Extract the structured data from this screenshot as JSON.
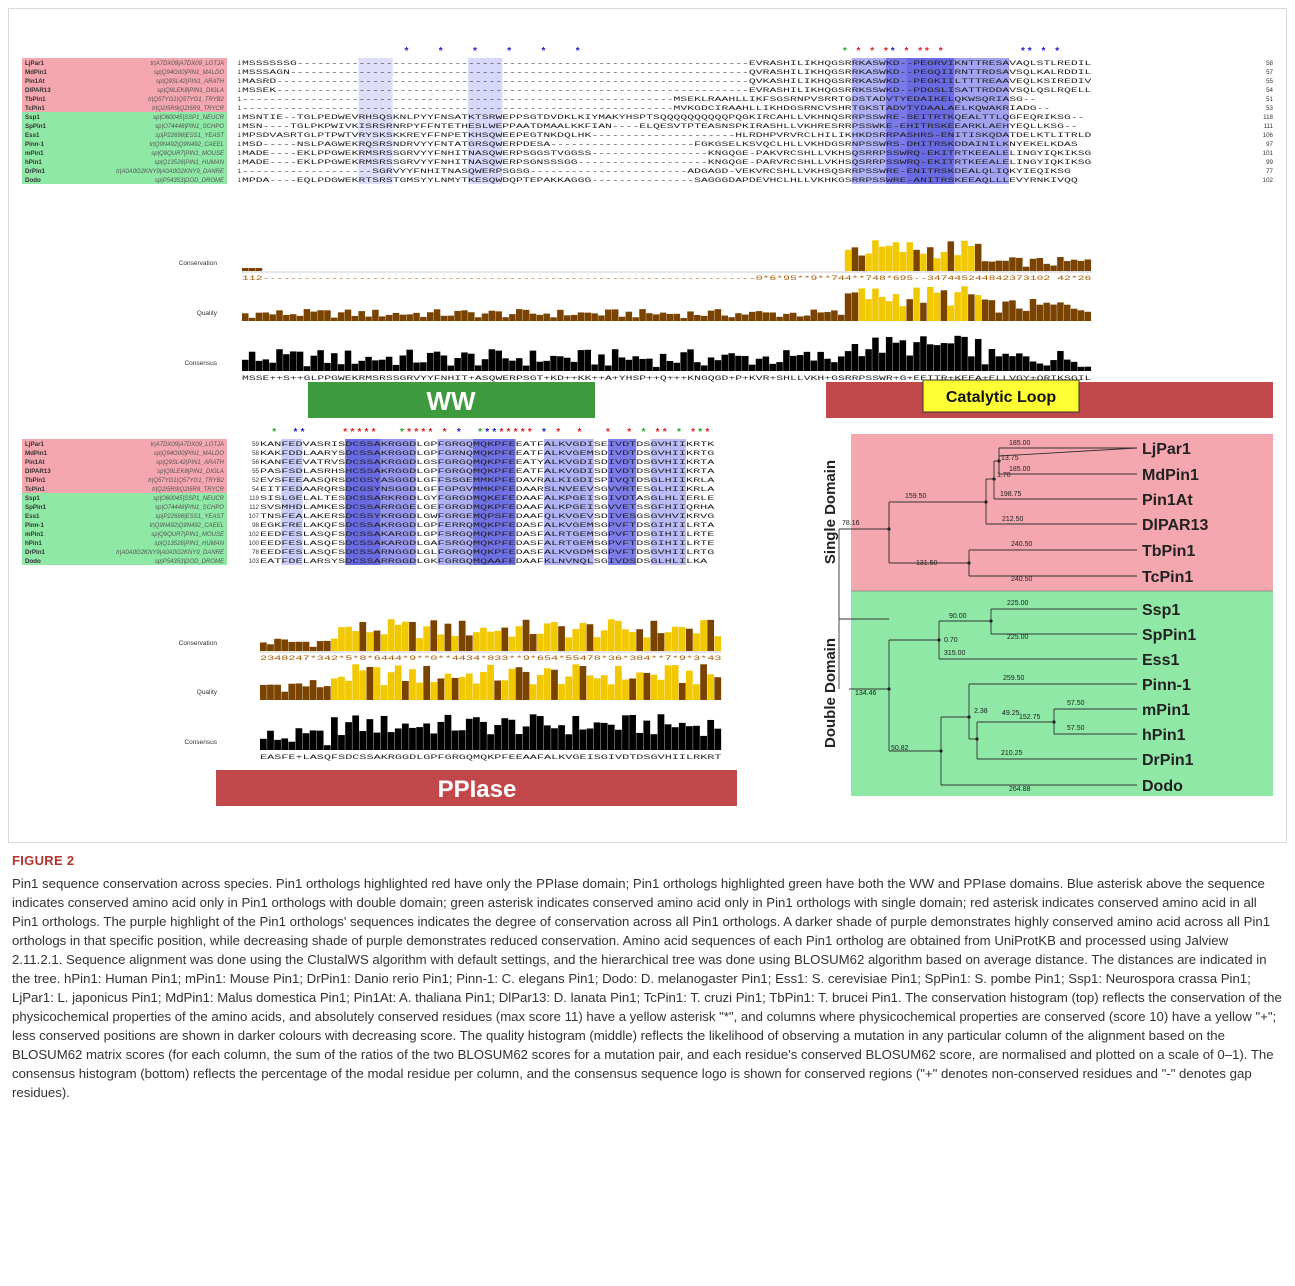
{
  "figure": {
    "top_panel": {
      "rows": [
        {
          "name": "LjPar1",
          "acc": "tr|A7DX09|A7DX09_LOTJA",
          "group": "single",
          "start": "1",
          "end": "58",
          "seq": "MSSSSSSG------------------------------------------------------------------EVRASHILIKHQGSRRKASWKD--PEGRVIKNTTRESAVAQLSTLREDILSG"
        },
        {
          "name": "MdPin1",
          "acc": "sp|Q94G00|PIN1_MALDO",
          "group": "single",
          "start": "1",
          "end": "57",
          "seq": "MSSSAGN-------------------------------------------------------------------QVRASHILIKHQGSRRKASWKD--PEGQIIRNTTRDSAVSQLKALRDDILSG"
        },
        {
          "name": "Pin1At",
          "acc": "sp|Q9SL42|PIN1_ARATH",
          "group": "single",
          "start": "1",
          "end": "55",
          "seq": "MASRD---------------------------------------------------------------------QVKASHILIKHQGSRRKASWKD--PEGKIILTTTREAAVEQLKSIREDIVSG"
        },
        {
          "name": "DlPAR13",
          "acc": "sp|Q9LEK8|PIN1_DIGLA",
          "group": "single",
          "start": "1",
          "end": "54",
          "seq": "MSSEK---------------------------------------------------------------------EVRASHILIKHQGSRRKSSWKD--PDGSLISATTRDDAVSQLQSLRQELLSD"
        },
        {
          "name": "TbPin1",
          "acc": "tr|Q57YG1|Q57YG1_TRYB2",
          "group": "single",
          "start": "1",
          "end": "51",
          "seq": "---------------------------------------------------------------MSEKLRAAHLLIKFSGSRNPVSRRTGDSTADVTYEDAIKELQKWSQRIASG--"
        },
        {
          "name": "TcPin1",
          "acc": "tr|Q2I5R9|Q2I5R9_TRYCR",
          "group": "single",
          "start": "1",
          "end": "53",
          "seq": "---------------------------------------------------------------MVKGDCIRAAHLLIKHDGSRNCVSHRTGKSTADVTYDAALAELKQWAKRIADG--"
        },
        {
          "name": "Ssp1",
          "acc": "sp|O60045|SSP1_NEUCR",
          "group": "double",
          "start": "1",
          "end": "118",
          "seq": "MSNTIE--TGLPEDWEVRHSQSKNLPYYFNSATKTSRWEPPSGTDVDKLKIYMAKYHSPTSQQQQQQQQQQPQGKIRCAHLLVKHNQSRRPSSWRE-SEITRTKQEALTTLQGFEQRIKSG--"
        },
        {
          "name": "SpPin1",
          "acc": "sp|O74448|PIN1_SCHPO",
          "group": "double",
          "start": "1",
          "end": "111",
          "seq": "MSN----TGLPKPWIVKISRSRNRPYFFNTETHESLWEPPAATDMAALKKFIAN----ELQESVTPTEASNSPKIRASHLLVKHRESRRPSSWKE-EHITRSKEEARKLAEHYEQLLKSG--"
        },
        {
          "name": "Ess1",
          "acc": "sp|P22696|ESS1_YEAST",
          "group": "double",
          "start": "1",
          "end": "106",
          "seq": "MPSDVASRTGLPTPWTVRYSKSKKREYFFNPETKHSQWEEPEGTNKDQLHK---------------------HLRDHPVRVRCLHILIKHKDSRRPASHRS-ENITISKQDATDELKTLITRLDDD"
        },
        {
          "name": "Pinn-1",
          "acc": "tr|Q9N492|Q9N492_CAEEL",
          "group": "double",
          "start": "1",
          "end": "97",
          "seq": "MSD-----NSLPAGWEKRQSRSNDRVYYFNTATGRSQWERPDESA---------------------FGKGSELKSVQCLHLLVKHDGSRNPSSWRS-DHITRSKDDAINILKNYEKELKDAS"
        },
        {
          "name": "mPin1",
          "acc": "sp|Q9QUR7|PIN1_MOUSE",
          "group": "double",
          "start": "1",
          "end": "101",
          "seq": "MADE----EKLPPGWEKRMSRSSGRVYYFNHITNASQWERPSGGSTVGGSS-----------------KNGQGE-PAKVRCSHLLVKHSQSRRPSSWRQ-EKITRTKEEALELINGYIQKIKSG"
        },
        {
          "name": "hPin1",
          "acc": "sp|Q13526|PIN1_HUMAN",
          "group": "double",
          "start": "1",
          "end": "99",
          "seq": "MADE----EKLPPGWEKRMSRSSGRVYYFNHITNASQWERPSGNSSSGG-------------------KNGQGE-PARVRCSHLLVKHSQSRRPSSWRQ-EKITRTKEEALELINGYIQKIKSG"
        },
        {
          "name": "DrPin1",
          "acc": "tr|A0A0G2KNY9|A0A0G2KNY9_DANRE",
          "group": "double",
          "start": "1",
          "end": "77",
          "seq": "-------------------SGRVYYFNHITNASQWERPSGSG-----------------------ADGAGD-VEKVRCSHLLVKHSQSRRPSSWRE-ENITRSKDEALQLIQKYIEQIKSG"
        },
        {
          "name": "Dodo",
          "acc": "sp|P54353|DOD_DROME",
          "group": "double",
          "start": "1",
          "end": "102",
          "seq": "MPDA----EQLPDGWEKRTSRSTGMSYYLNMYTKESQWDQPTEPAKKAGGG---------------SAGGGDAPDEVHCLHLLVKHKGSRRPSSWRE-ANITRSKEEAQLLLEVYRNKIVQQ"
        }
      ],
      "conservation_numbers": "112------------------------------------------------------------------------0*6*95**9**744**748*695--347445244842373102 42*264----",
      "consensus": "MSSE++S++GLPPGWEKRMSRSSGRVYYFNHIT+ASQWERPSGT+KD++KK++A+YHSP++Q+++KNGQGD+P+KVR+SHLLVKH+GSRRPSSWR+G+EEITR+KEEA+ELLVGY+QRIKSGILSG",
      "ww_label": "WW",
      "loop_label": "Catalytic Loop"
    },
    "bottom_panel": {
      "rows": [
        {
          "name": "LjPar1",
          "acc": "tr|A7DX09|A7DX09_LOTJA",
          "group": "single",
          "start": "59",
          "seq": "KANFEDVASRISDCSSAKRGGDLGPFGRGQMQKPFEEATFALKVGDISEIVDTDSGVHIIKRTK"
        },
        {
          "name": "MdPin1",
          "acc": "sp|Q94G00|PIN1_MALDO",
          "group": "single",
          "start": "58",
          "seq": "KAKFDDLAARYSDCSSAKRGGDLGPFGRNQMQKPFEEATFALKVGEMSDIVDTDSGVHIIKRTG"
        },
        {
          "name": "Pin1At",
          "acc": "sp|Q9SL42|PIN1_ARATH",
          "group": "single",
          "start": "56",
          "seq": "KANFEEVATRVSDCSSAKRGGDLGSFGRGQMQKPFEEATYALKVGDISDIVDTDSGVHIIKRTA"
        },
        {
          "name": "DlPAR13",
          "acc": "sp|Q9LEK8|PIN1_DIGLA",
          "group": "single",
          "start": "55",
          "seq": "PASFSDLASRHSHCSSAKRGGDLGPFGRGQMQKPFEEATFALKVGDISDIVDTDSGVHIIKRTA"
        },
        {
          "name": "TbPin1",
          "acc": "tr|Q57YG1|Q57YG1_TRYB2",
          "group": "single",
          "start": "52",
          "seq": "EVSFEEAASQRSDCGSYASGGDLGFFSSGEMMKPFEDAVRALKIGDISPIVQTDSGLHIIKRLA"
        },
        {
          "name": "TcPin1",
          "acc": "tr|Q2I5R9|Q2I5R9_TRYCR",
          "group": "single",
          "start": "54",
          "seq": "EITFEDAARQRSDCGSYNSGGDLGFFGPGVMMKPFEDAARSLNVEEVSGVVRTESGLHIIKRLA"
        },
        {
          "name": "Ssp1",
          "acc": "sp|O60045|SSP1_NEUCR",
          "group": "double",
          "start": "119",
          "seq": "SISLGELALTESDCSSARKRGDLGYFGRGDMQKEFEDAAFALKPGEISGIVDTASGLHLIERLE"
        },
        {
          "name": "SpPin1",
          "acc": "sp|O74448|PIN1_SCHPO",
          "group": "double",
          "start": "112",
          "seq": "SVSMHDLAMKESDCSSARRGGELGEFGRGDMQKPFEDAAFALKPGEISGVVETSSGFHIIQRHA"
        },
        {
          "name": "Ess1",
          "acc": "sp|P22696|ESS1_YEAST",
          "group": "double",
          "start": "107",
          "seq": "TNSFEALAKERSDCSSYKRGGDLGWFGRGEMQPSFEDAAFQLKVGEVSDIVESGSGVHVIKRVG"
        },
        {
          "name": "Pinn-1",
          "acc": "tr|Q9N492|Q9N492_CAEEL",
          "group": "double",
          "start": "98",
          "seq": "EGKFRELAKQFSDCSSAKRGGDLGPFERRQMQKPFEDASFALKVGEMSGPVFTDSGIHIILRTA"
        },
        {
          "name": "mPin1",
          "acc": "sp|Q9QUR7|PIN1_MOUSE",
          "group": "double",
          "start": "102",
          "seq": "EEDFESLASQFSDCSSAKARGDLGPFSRGQMQKPFEDASFALRTGEMSGPVFTDSGIHIILRTE"
        },
        {
          "name": "hPin1",
          "acc": "sp|Q13526|PIN1_HUMAN",
          "group": "double",
          "start": "100",
          "seq": "EEDFESLASQFSDCSSAKARGDLGAFSRGQMQKPFEDASFALRTGEMSGPVFTDSGIHIILRTE"
        },
        {
          "name": "DrPin1",
          "acc": "tr|A0A0G2KNY9|A0A0G2KNY9_DANRE",
          "group": "double",
          "start": "78",
          "seq": "EEDFESLASQFSDCSSARNGGDLGLFGRGQMQKPFEDASFALKVGDMSGPVFTDSGVHIILRTG"
        },
        {
          "name": "Dodo",
          "acc": "sp|P54353|DOD_DROME",
          "group": "double",
          "start": "103",
          "seq": "EATFDELARSYSDCSSARRGGDLGKFGRGQMQAAFEDAAFKLNVNQLSGIVDSDSGLHLILKA"
        }
      ],
      "conservation_numbers": "2348247*342*5*8*6444*9**0**4434*833**9*654*55478*36*384**7*9*3*43",
      "consensus": "EASFE+LASQFSDCSSAKRGGDLGPFGRGQMQKPFEEAAFALKVGEISGIVDTDSGVHIILRKRTA",
      "pplase_label": "PPIase"
    },
    "track_labels": {
      "conservation": "Conservation",
      "quality": "Quality",
      "consensus": "Consensus"
    },
    "tree": {
      "single_label": "Single Domain",
      "double_label": "Double Domain",
      "leaves": [
        "LjPar1",
        "MdPin1",
        "Pin1At",
        "DlPAR13",
        "TbPin1",
        "TcPin1",
        "Ssp1",
        "SpPin1",
        "Ess1",
        "Pinn-1",
        "mPin1",
        "hPin1",
        "DrPin1",
        "Dodo"
      ],
      "distances": [
        "185.00",
        "13.75",
        "185.00",
        "1.70",
        "198.75",
        "212.50",
        "159.50",
        "240.50",
        "131.50",
        "240.50",
        "78.16",
        "225.00",
        "90.00",
        "225.00",
        "0.70",
        "315.00",
        "134.46",
        "259.50",
        "57.50",
        "2.38",
        "152.75",
        "57.50",
        "49.25",
        "210.25",
        "50.82",
        "264.88"
      ]
    },
    "colors": {
      "single": "#f4a7ae",
      "double": "#8fe8a6",
      "blue_star": "#2020c8",
      "green_star": "#22aa22",
      "red_star": "#dd2222",
      "domain_red": "#c0474a",
      "ww_green": "#3e9a3e",
      "loop_yellow": "#ffff33",
      "dark_bar": "#7a4400",
      "gold_bar": "#f2c900"
    }
  },
  "caption": {
    "label": "FIGURE 2",
    "text": "Pin1 sequence conservation across species. Pin1 orthologs highlighted red have only the PPIase domain; Pin1 orthologs highlighted green have both the WW and PPIase domains. Blue asterisk above the sequence indicates conserved amino acid only in Pin1 orthologs with double domain; green asterisk indicates conserved amino acid only in Pin1 orthologs with single domain; red asterisk indicates conserved amino acid in all Pin1 orthologs. The purple highlight of the Pin1 orthologs' sequences indicates the degree of conservation across all Pin1 orthologs. A darker shade of purple demonstrates highly conserved amino acid across all Pin1 orthologs in that specific position, while decreasing shade of purple demonstrates reduced conservation. Amino acid sequences of each Pin1 ortholog are obtained from UniProtKB and processed using Jalview 2.11.2.1. Sequence alignment was done using the ClustalWS algorithm with default settings, and the hierarchical tree was done using BLOSUM62 algorithm based on average distance. The distances are indicated in the tree. hPin1: Human Pin1; mPin1: Mouse Pin1; DrPin1: Danio rerio Pin1; Pinn-1: C. elegans Pin1; Dodo: D. melanogaster Pin1; Ess1: S. cerevisiae Pin1; SpPin1: S. pombe Pin1; Ssp1: Neurospora crassa Pin1; LjPar1: L. japonicus Pin1; MdPin1: Malus domestica Pin1; Pin1At: A. thaliana Pin1; DlPar13: D. lanata Pin1; TcPin1: T. cruzi Pin1; TbPin1: T. brucei Pin1. The conservation histogram (top) reflects the conservation of the physicochemical properties of the amino acids, and absolutely conserved residues (max score 11) have a yellow asterisk \"*\", and columns where physicochemical properties are conserved (score 10) have a yellow \"+\"; less conserved positions are shown in darker colours with decreasing score. The quality histogram (middle) reflects the likelihood of observing a mutation in any particular column of the alignment based on the BLOSUM62 matrix scores (for each column, the sum of the ratios of the two BLOSUM62 scores for a mutation pair, and each residue's conserved BLOSUM62 score, are normalised and plotted on a scale of 0–1). The consensus histogram (bottom) reflects the percentage of the modal residue per column, and the consensus sequence logo is shown for conserved regions (\"+\" denotes non-conserved residues and \"-\" denotes gap residues)."
  }
}
